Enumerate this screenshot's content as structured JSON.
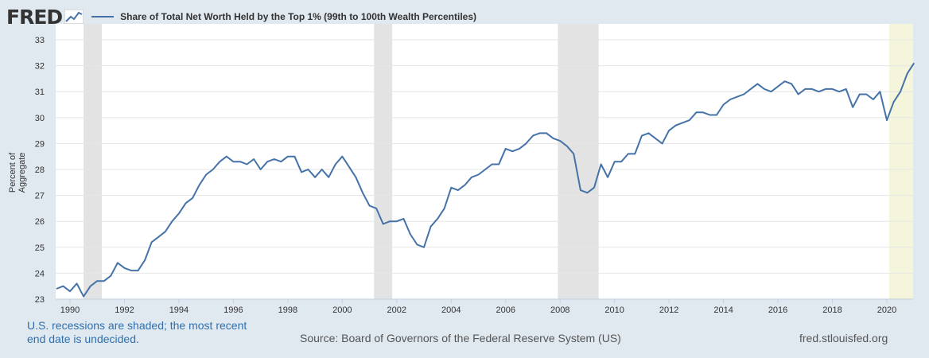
{
  "header": {
    "logo": "FRED",
    "legend": "Share of Total Net Worth Held by the Top 1% (99th to 100th Wealth Percentiles)"
  },
  "footer": {
    "note": "U.S. recessions are shaded; the most recent end date is undecided.",
    "source": "Source: Board of Governors of the Federal Reserve System (US)",
    "site": "fred.stlouisfed.org"
  },
  "colors": {
    "line": "#4572a7",
    "recession": "#e3e3e3",
    "current_recession": "#f5f5dc",
    "background": "#e1e9f0"
  },
  "chart_data": {
    "type": "line",
    "title": "",
    "xlabel": "",
    "ylabel": "Percent of Aggregate",
    "ylim": [
      23,
      33
    ],
    "xlim": [
      1989.5,
      2021.0
    ],
    "grid": true,
    "legend_placement": "top-left",
    "x_ticks": [
      "1990",
      "1992",
      "1994",
      "1996",
      "1998",
      "2000",
      "2002",
      "2004",
      "2006",
      "2008",
      "2010",
      "2012",
      "2014",
      "2016",
      "2018",
      "2020"
    ],
    "y_ticks": [
      "23",
      "24",
      "25",
      "26",
      "27",
      "28",
      "29",
      "30",
      "31",
      "32",
      "33"
    ],
    "frequency": "quarterly",
    "start": "1989-Q3",
    "recessions": [
      {
        "start": "1990-07",
        "end": "1991-03"
      },
      {
        "start": "2001-03",
        "end": "2001-11"
      },
      {
        "start": "2007-12",
        "end": "2009-06"
      },
      {
        "start": "2020-02",
        "end": "undecided"
      }
    ],
    "series": [
      {
        "name": "Share of Total Net Worth Held by the Top 1% (99th to 100th Wealth Percentiles)",
        "values": [
          23.4,
          23.5,
          23.3,
          23.6,
          23.1,
          23.5,
          23.7,
          23.7,
          23.9,
          24.4,
          24.2,
          24.1,
          24.1,
          24.5,
          25.2,
          25.4,
          25.6,
          26.0,
          26.3,
          26.7,
          26.9,
          27.4,
          27.8,
          28.0,
          28.3,
          28.5,
          28.3,
          28.3,
          28.2,
          28.4,
          28.0,
          28.3,
          28.4,
          28.3,
          28.5,
          28.5,
          27.9,
          28.0,
          27.7,
          28.0,
          27.7,
          28.2,
          28.5,
          28.1,
          27.7,
          27.1,
          26.6,
          26.5,
          25.9,
          26.0,
          26.0,
          26.1,
          25.5,
          25.1,
          25.0,
          25.8,
          26.1,
          26.5,
          27.3,
          27.2,
          27.4,
          27.7,
          27.8,
          28.0,
          28.2,
          28.2,
          28.8,
          28.7,
          28.8,
          29.0,
          29.3,
          29.4,
          29.4,
          29.2,
          29.1,
          28.9,
          28.6,
          27.2,
          27.1,
          27.3,
          28.2,
          27.7,
          28.3,
          28.3,
          28.6,
          28.6,
          29.3,
          29.4,
          29.2,
          29.0,
          29.5,
          29.7,
          29.8,
          29.9,
          30.2,
          30.2,
          30.1,
          30.1,
          30.5,
          30.7,
          30.8,
          30.9,
          31.1,
          31.3,
          31.1,
          31.0,
          31.2,
          31.4,
          31.3,
          30.9,
          31.1,
          31.1,
          31.0,
          31.1,
          31.1,
          31.0,
          31.1,
          30.4,
          30.9,
          30.9,
          30.7,
          31.0,
          29.9,
          30.6,
          31.0,
          31.7,
          32.1
        ]
      }
    ]
  }
}
